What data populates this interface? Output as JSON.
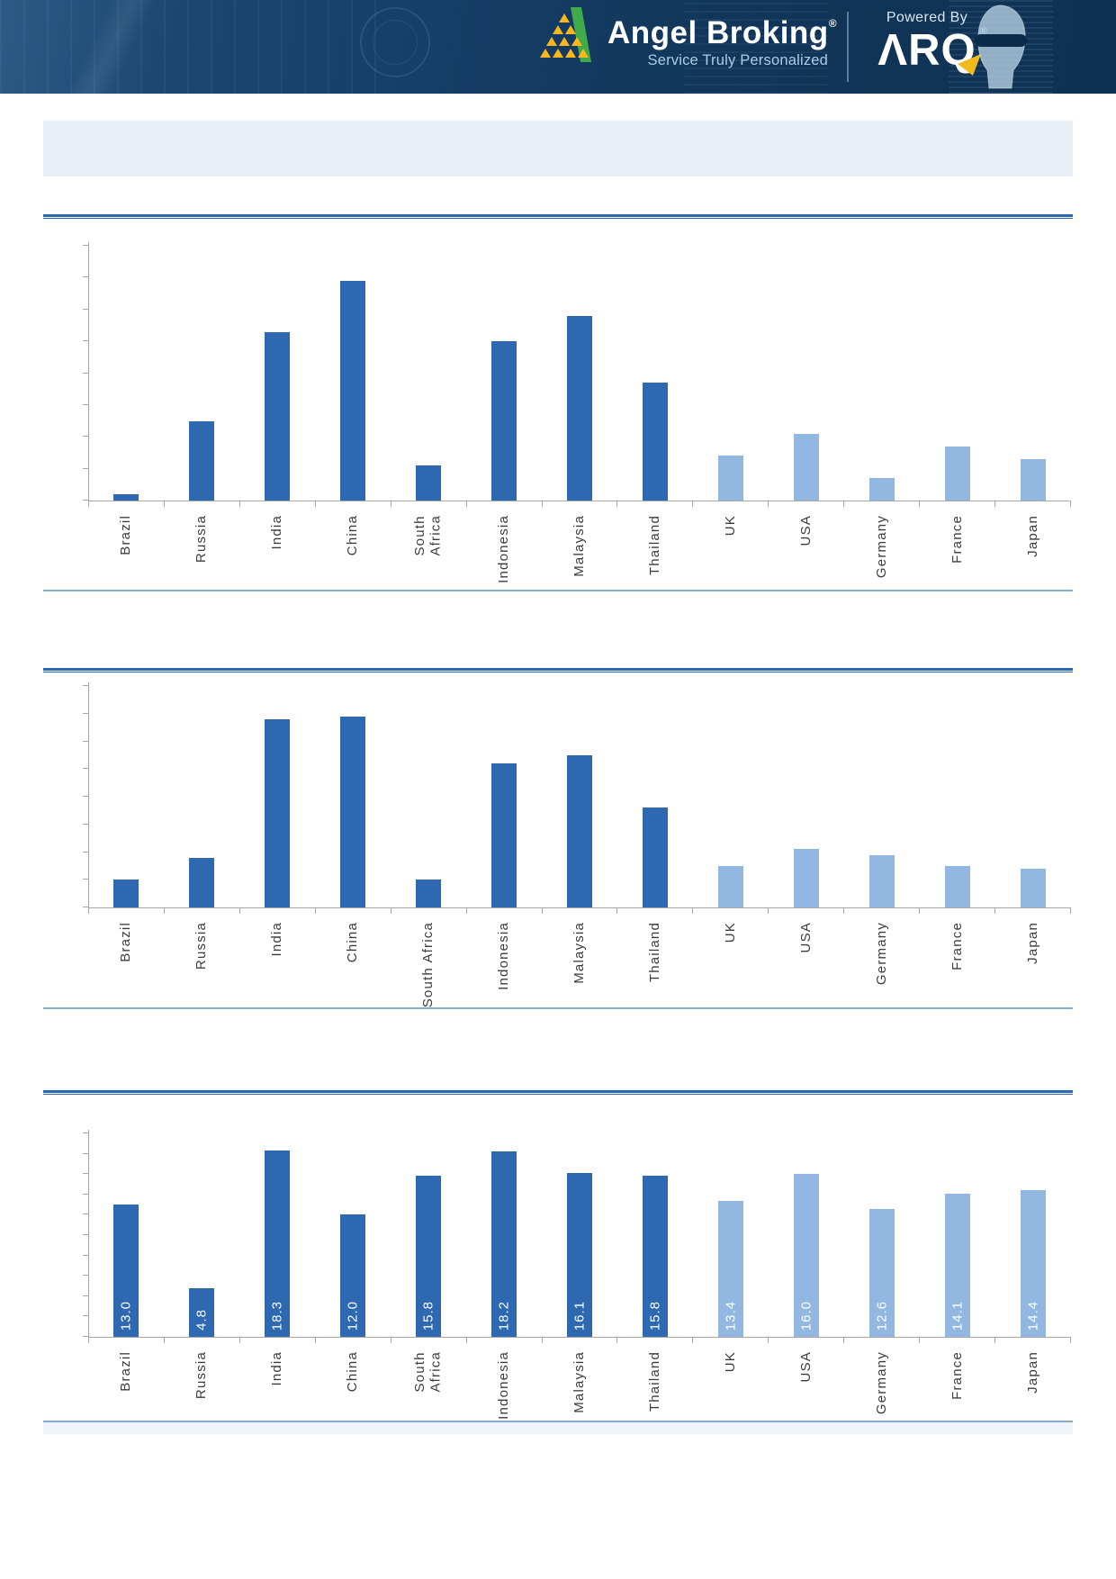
{
  "header": {
    "brand": "Angel Broking",
    "brand_registered": "®",
    "tagline": "Service Truly Personalized",
    "powered_by": "Powered By",
    "product": "ΛRQ",
    "product_registered": "®",
    "colors": {
      "banner_bg": "#123a63",
      "brand_text": "#ffffff",
      "tagline_text": "#aecbe8",
      "logo_yellow": "#f8b71c",
      "logo_green": "#41ab49",
      "arq_arrow_yellow": "#f2bb1d"
    }
  },
  "title_banner": {
    "text": ""
  },
  "colors": {
    "emerging_bar": "#2e68b0",
    "developed_bar": "#92b8e2",
    "rule_thick": "#2a6ab5",
    "rule_thin": "#8aabc6",
    "axis": "#a6a6a6",
    "label_text": "#3c3c3c",
    "value_label_text": "#ffffff",
    "title_box_bg": "#e9eff7",
    "footer_band_bg": "#eef4fa"
  },
  "chart_data": [
    {
      "type": "bar",
      "title": "",
      "categories": [
        "Brazil",
        "Russia",
        "India",
        "China",
        "South\nAfrica",
        "Indonesia",
        "Malaysia",
        "Thailand",
        "UK",
        "USA",
        "Germany",
        "France",
        "Japan"
      ],
      "values": [
        0.2,
        2.5,
        5.3,
        6.9,
        1.1,
        5.0,
        5.8,
        3.7,
        1.4,
        2.1,
        0.7,
        1.7,
        1.3
      ],
      "values_estimated": true,
      "ylim": [
        0,
        8
      ],
      "ytick_step": 1,
      "y_axis_labels_visible": false,
      "value_labels": null,
      "color_groups": [
        "emerging",
        "emerging",
        "emerging",
        "emerging",
        "emerging",
        "emerging",
        "emerging",
        "emerging",
        "developed",
        "developed",
        "developed",
        "developed",
        "developed"
      ],
      "legend": "none",
      "grid": false
    },
    {
      "type": "bar",
      "title": "",
      "categories": [
        "Brazil",
        "Russia",
        "India",
        "China",
        "South Africa",
        "Indonesia",
        "Malaysia",
        "Thailand",
        "UK",
        "USA",
        "Germany",
        "France",
        "Japan"
      ],
      "values": [
        1.0,
        1.8,
        6.8,
        6.9,
        1.0,
        5.2,
        5.5,
        3.6,
        1.5,
        2.1,
        1.9,
        1.5,
        1.4
      ],
      "values_estimated": true,
      "ylim": [
        0,
        8
      ],
      "ytick_step": 1,
      "y_axis_labels_visible": false,
      "value_labels": null,
      "color_groups": [
        "emerging",
        "emerging",
        "emerging",
        "emerging",
        "emerging",
        "emerging",
        "emerging",
        "emerging",
        "developed",
        "developed",
        "developed",
        "developed",
        "developed"
      ],
      "legend": "none",
      "grid": false
    },
    {
      "type": "bar",
      "title": "",
      "categories": [
        "Brazil",
        "Russia",
        "India",
        "China",
        "South\nAfrica",
        "Indonesia",
        "Malaysia",
        "Thailand",
        "UK",
        "USA",
        "Germany",
        "France",
        "Japan"
      ],
      "values": [
        13.0,
        4.8,
        18.3,
        12.0,
        15.8,
        18.2,
        16.1,
        15.8,
        13.4,
        16.0,
        12.6,
        14.1,
        14.4
      ],
      "values_estimated": false,
      "ylim": [
        0,
        20
      ],
      "ytick_step": 2,
      "y_axis_labels_visible": false,
      "value_labels": [
        "13.0",
        "4.8",
        "18.3",
        "12.0",
        "15.8",
        "18.2",
        "16.1",
        "15.8",
        "13.4",
        "16.0",
        "12.6",
        "14.1",
        "14.4"
      ],
      "color_groups": [
        "emerging",
        "emerging",
        "emerging",
        "emerging",
        "emerging",
        "emerging",
        "emerging",
        "emerging",
        "developed",
        "developed",
        "developed",
        "developed",
        "developed"
      ],
      "legend": "none",
      "grid": false
    }
  ]
}
